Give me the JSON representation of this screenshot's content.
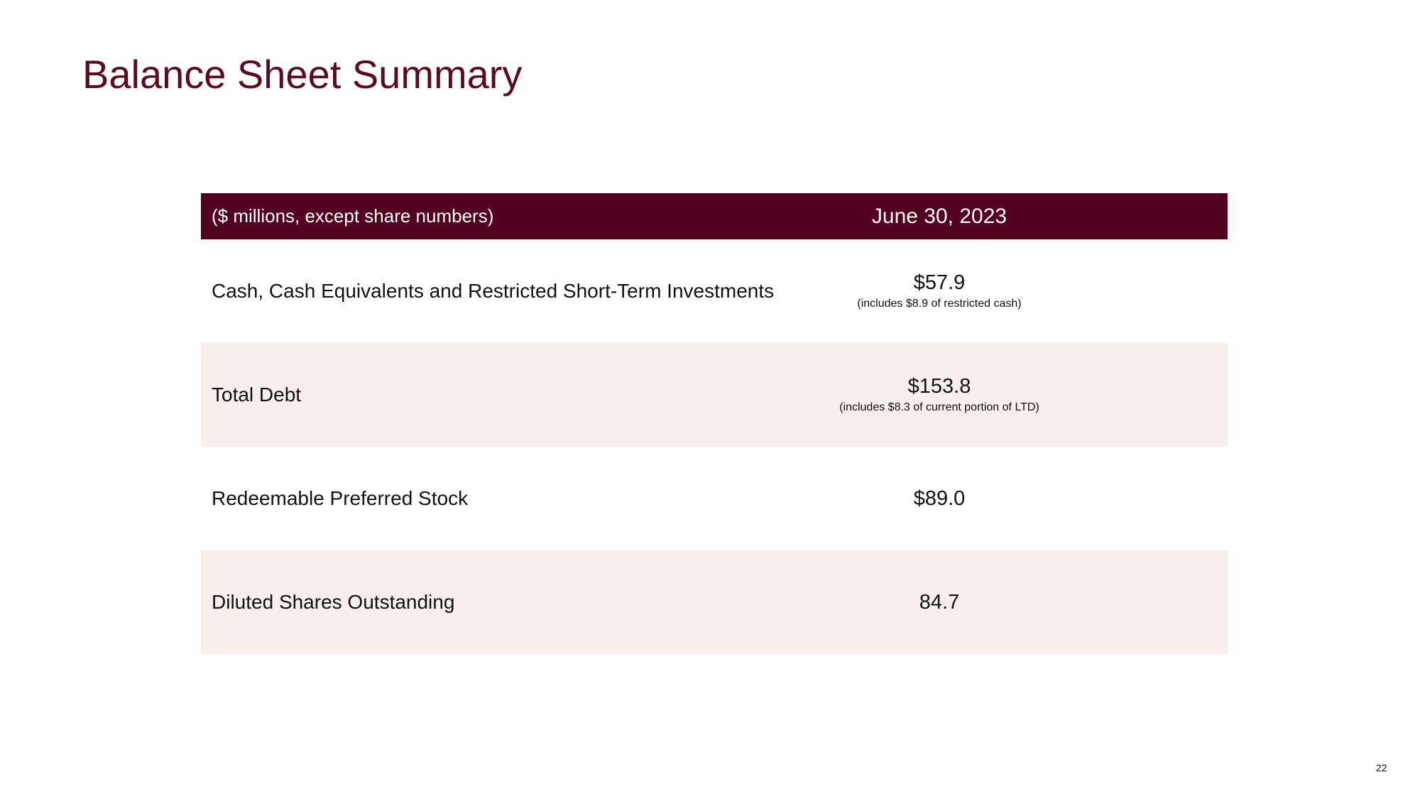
{
  "slide": {
    "title": "Balance Sheet Summary",
    "page_number": "22"
  },
  "table": {
    "header": {
      "label": "($ millions, except share numbers)",
      "date": "June 30, 2023"
    },
    "rows": [
      {
        "label": "Cash, Cash Equivalents and Restricted Short-Term Investments",
        "value": "$57.9",
        "note": "(includes $8.9 of restricted cash)"
      },
      {
        "label": "Total Debt",
        "value": "$153.8",
        "note": "(includes $8.3 of current portion of LTD)"
      },
      {
        "label": "Redeemable Preferred Stock",
        "value": "$89.0",
        "note": ""
      },
      {
        "label": "Diluted Shares Outstanding",
        "value": "84.7",
        "note": ""
      }
    ]
  },
  "colors": {
    "title": "#5c0a20",
    "header_background": "#52001e",
    "shaded_row": "#f8efeb"
  }
}
